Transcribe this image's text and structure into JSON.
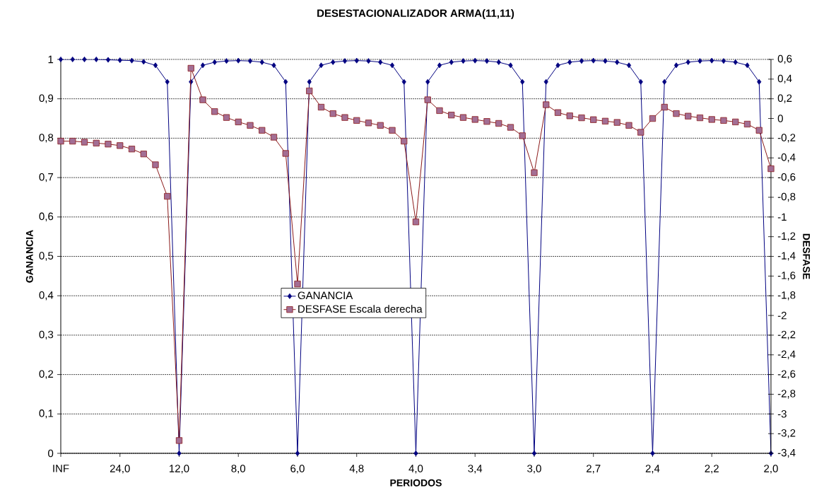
{
  "chart_data": {
    "type": "line",
    "title": "DESESTACIONALIZADOR ARMA(11,11)",
    "xlabel": "PERIODOS",
    "ylabel": "GANANCIA",
    "y2label": "DESFASE",
    "categories": [
      "INF",
      null,
      null,
      null,
      null,
      "24,0",
      null,
      null,
      null,
      null,
      "12,0",
      null,
      null,
      null,
      null,
      "8,0",
      null,
      null,
      null,
      null,
      "6,0",
      null,
      null,
      null,
      null,
      "4,8",
      null,
      null,
      null,
      null,
      "4,0",
      null,
      null,
      null,
      null,
      "3,4",
      null,
      null,
      null,
      null,
      "3,0",
      null,
      null,
      null,
      null,
      "2,7",
      null,
      null,
      null,
      null,
      "2,4",
      null,
      null,
      null,
      null,
      "2,2",
      null,
      null,
      null,
      null,
      "2,0"
    ],
    "series": [
      {
        "name": "GANANCIA",
        "color": "#000080",
        "marker": "diamond",
        "values": [
          1,
          1,
          1,
          1,
          0.999,
          0.998,
          0.997,
          0.994,
          0.985,
          0.943,
          0,
          0.943,
          0.985,
          0.993,
          0.996,
          0.997,
          0.996,
          0.993,
          0.985,
          0.943,
          0,
          0.943,
          0.985,
          0.993,
          0.996,
          0.997,
          0.996,
          0.993,
          0.985,
          0.943,
          0,
          0.943,
          0.985,
          0.993,
          0.996,
          0.997,
          0.996,
          0.993,
          0.985,
          0.943,
          0,
          0.943,
          0.985,
          0.993,
          0.996,
          0.997,
          0.996,
          0.993,
          0.985,
          0.943,
          0,
          0.943,
          0.985,
          0.993,
          0.996,
          0.997,
          0.996,
          0.993,
          0.985,
          0.943,
          0
        ]
      },
      {
        "name": "DESFASE Escala derecha",
        "color": "#8b1a1a",
        "marker": "square",
        "axis": "y2",
        "values": [
          -0.23,
          -0.23,
          -0.24,
          -0.25,
          -0.26,
          -0.275,
          -0.31,
          -0.36,
          -0.47,
          -0.79,
          -3.27,
          0.51,
          0.19,
          0.07,
          0.01,
          -0.035,
          -0.07,
          -0.12,
          -0.19,
          -0.355,
          -1.68,
          0.28,
          0.115,
          0.05,
          0.01,
          -0.02,
          -0.045,
          -0.07,
          -0.12,
          -0.23,
          -1.05,
          0.19,
          0.08,
          0.035,
          0.01,
          -0.01,
          -0.03,
          -0.05,
          -0.09,
          -0.175,
          -0.55,
          0.14,
          0.06,
          0.027,
          0.007,
          -0.012,
          -0.027,
          -0.04,
          -0.07,
          -0.14,
          0,
          0.115,
          0.05,
          0.024,
          0.007,
          -0.01,
          -0.02,
          -0.035,
          -0.057,
          -0.12,
          -0.51
        ]
      }
    ],
    "ylim": [
      0,
      1
    ],
    "yticks": [
      0,
      {
        "value": 0.1,
        "label": "0,1"
      },
      {
        "value": 0.2,
        "label": "0,2"
      },
      {
        "value": 0.3,
        "label": "0,3"
      },
      {
        "value": 0.4,
        "label": "0,4"
      },
      {
        "value": 0.5,
        "label": "0,5"
      },
      {
        "value": 0.6,
        "label": "0,6"
      },
      {
        "value": 0.7,
        "label": "0,7"
      },
      {
        "value": 0.8,
        "label": "0,8"
      },
      {
        "value": 0.9,
        "label": "0,9"
      },
      1
    ],
    "y2lim": [
      -3.4,
      0.6
    ],
    "y2ticks": [
      {
        "value": -3.4,
        "label": "-3,4"
      },
      {
        "value": -3.2,
        "label": "-3,2"
      },
      -3,
      {
        "value": -2.8,
        "label": "-2,8"
      },
      {
        "value": -2.6,
        "label": "-2,6"
      },
      {
        "value": -2.4,
        "label": "-2,4"
      },
      {
        "value": -2.2,
        "label": "-2,2"
      },
      -2,
      {
        "value": -1.8,
        "label": "-1,8"
      },
      {
        "value": -1.6,
        "label": "-1,6"
      },
      {
        "value": -1.4,
        "label": "-1,4"
      },
      {
        "value": -1.2,
        "label": "-1,2"
      },
      -1,
      {
        "value": -0.8,
        "label": "-0,8"
      },
      {
        "value": -0.6,
        "label": "-0,6"
      },
      {
        "value": -0.4,
        "label": "-0,4"
      },
      {
        "value": -0.2,
        "label": "-0,2"
      },
      0,
      {
        "value": 0.2,
        "label": "0,2"
      },
      {
        "value": 0.4,
        "label": "0,4"
      },
      {
        "value": 0.6,
        "label": "0,6"
      }
    ],
    "grid": "y",
    "legend": "center",
    "line_style": "solid"
  }
}
